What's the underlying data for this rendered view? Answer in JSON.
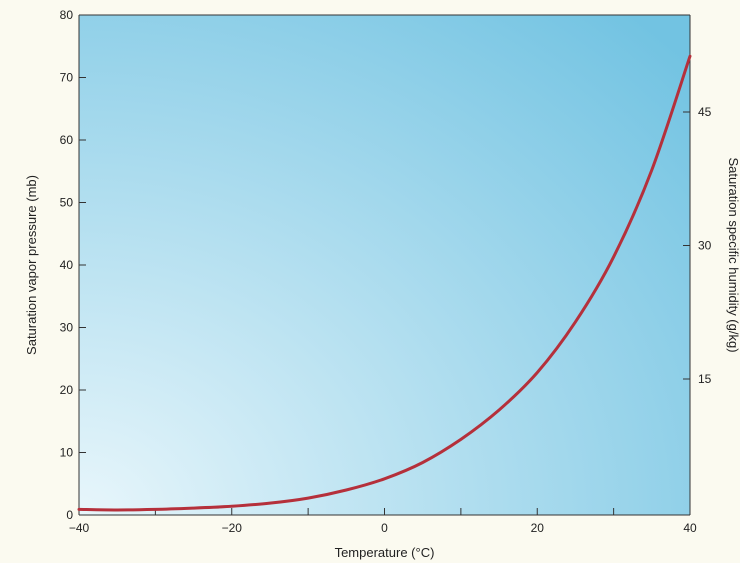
{
  "chart_data": {
    "type": "line",
    "xlabel": "Temperature (°C)",
    "ylabel": "Saturation vapor pressure (mb)",
    "y2label": "Saturation specific humidity (g/kg)",
    "xlim": [
      -40,
      40
    ],
    "ylim": [
      0,
      80
    ],
    "x_ticks": [
      -40,
      -30,
      -20,
      -10,
      0,
      10,
      20,
      30,
      40
    ],
    "x_tick_labels": [
      "−40",
      "",
      "−20",
      "",
      "0",
      "",
      "20",
      "",
      "40"
    ],
    "y_ticks": [
      0,
      10,
      20,
      30,
      40,
      50,
      60,
      70,
      80
    ],
    "y_tick_labels": [
      "0",
      "10",
      "20",
      "30",
      "40",
      "50",
      "60",
      "70",
      "80"
    ],
    "y2_ticks": [
      15,
      30,
      45
    ],
    "y2_tick_labels": [
      "15",
      "30",
      "45"
    ],
    "grid": false,
    "colors": {
      "line": "#b5303b",
      "background_light": "#e8f5fa",
      "background_dark": "#76c5e3"
    },
    "series": [
      {
        "x": [
          -40,
          -35,
          -30,
          -25,
          -20,
          -15,
          -10,
          -5,
          0,
          5,
          10,
          15,
          20,
          25,
          30,
          35,
          40
        ],
        "y": [
          0.9,
          0.8,
          0.9,
          1.1,
          1.4,
          1.9,
          2.7,
          4.0,
          5.8,
          8.4,
          12.1,
          16.8,
          22.8,
          30.9,
          41.3,
          55.2,
          73.4
        ]
      }
    ]
  }
}
